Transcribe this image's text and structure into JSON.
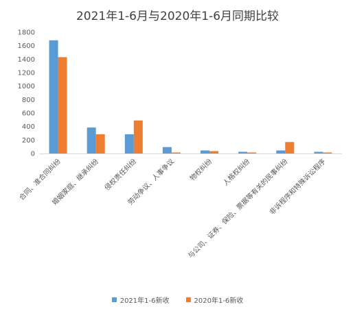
{
  "chart_data": {
    "type": "bar",
    "title": "2021年1-6月与2020年1-6月同期比较",
    "categories": [
      "合同、准合同纠纷",
      "婚姻家庭、继承纠纷",
      "侵权责任纠纷",
      "劳动争议、人事争议",
      "物权纠纷",
      "人格权纠纷",
      "与公司、证券、保险、票据等有关的民事纠纷",
      "非诉程序和特殊诉讼程序"
    ],
    "series": [
      {
        "name": "2021年1-6新收",
        "color": "#5b9bd5",
        "values": [
          1680,
          385,
          285,
          95,
          45,
          25,
          45,
          25
        ]
      },
      {
        "name": "2020年1-6新收",
        "color": "#ed7d31",
        "values": [
          1430,
          285,
          490,
          15,
          35,
          15,
          170,
          15
        ]
      }
    ],
    "ylim": [
      0,
      1800
    ],
    "yticks": [
      0,
      200,
      400,
      600,
      800,
      1000,
      1200,
      1400,
      1600,
      1800
    ],
    "grid": false,
    "legend_position": "bottom"
  }
}
